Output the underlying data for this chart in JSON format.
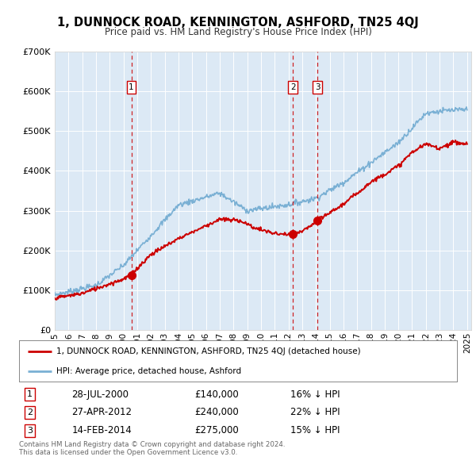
{
  "title": "1, DUNNOCK ROAD, KENNINGTON, ASHFORD, TN25 4QJ",
  "subtitle": "Price paid vs. HM Land Registry's House Price Index (HPI)",
  "plot_bg_color": "#dce9f5",
  "ylim": [
    0,
    700000
  ],
  "yticks": [
    0,
    100000,
    200000,
    300000,
    400000,
    500000,
    600000,
    700000
  ],
  "ytick_labels": [
    "£0",
    "£100K",
    "£200K",
    "£300K",
    "£400K",
    "£500K",
    "£600K",
    "£700K"
  ],
  "xstart": 1995,
  "xend": 2025,
  "transactions": [
    {
      "num": 1,
      "year": 2000.57,
      "price": 140000,
      "label": "28-JUL-2000",
      "amount": "£140,000",
      "pct": "16% ↓ HPI"
    },
    {
      "num": 2,
      "year": 2012.32,
      "price": 240000,
      "label": "27-APR-2012",
      "amount": "£240,000",
      "pct": "22% ↓ HPI"
    },
    {
      "num": 3,
      "year": 2014.12,
      "price": 275000,
      "label": "14-FEB-2014",
      "amount": "£275,000",
      "pct": "15% ↓ HPI"
    }
  ],
  "red_line_color": "#cc0000",
  "blue_line_color": "#7ab0d4",
  "vline_color": "#cc0000",
  "legend_label_red": "1, DUNNOCK ROAD, KENNINGTON, ASHFORD, TN25 4QJ (detached house)",
  "legend_label_blue": "HPI: Average price, detached house, Ashford",
  "footer": "Contains HM Land Registry data © Crown copyright and database right 2024.\nThis data is licensed under the Open Government Licence v3.0."
}
